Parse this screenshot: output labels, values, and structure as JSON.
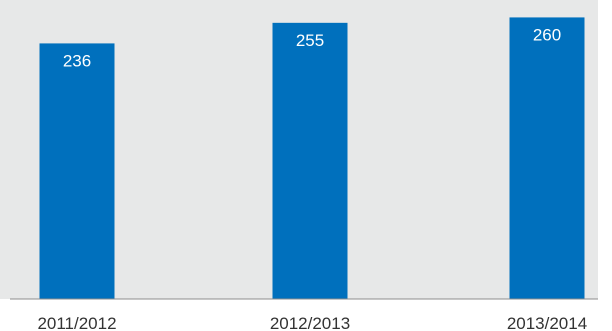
{
  "chart_data": {
    "type": "bar",
    "categories": [
      "2011/2012",
      "2012/2013",
      "2013/2014"
    ],
    "values": [
      236,
      255,
      260
    ],
    "data_labels": [
      "236",
      "255",
      "260"
    ],
    "title": "",
    "xlabel": "",
    "ylabel": "",
    "ylim": [
      0,
      265
    ],
    "grid": false,
    "legend": "none",
    "colors": {
      "bar": "#0070bd",
      "plot_background": "#e7e8e8",
      "page_background": "#ffffff",
      "axis_line": "#8c8c8c",
      "data_label_text": "#ffffff",
      "category_text": "#333333"
    }
  }
}
